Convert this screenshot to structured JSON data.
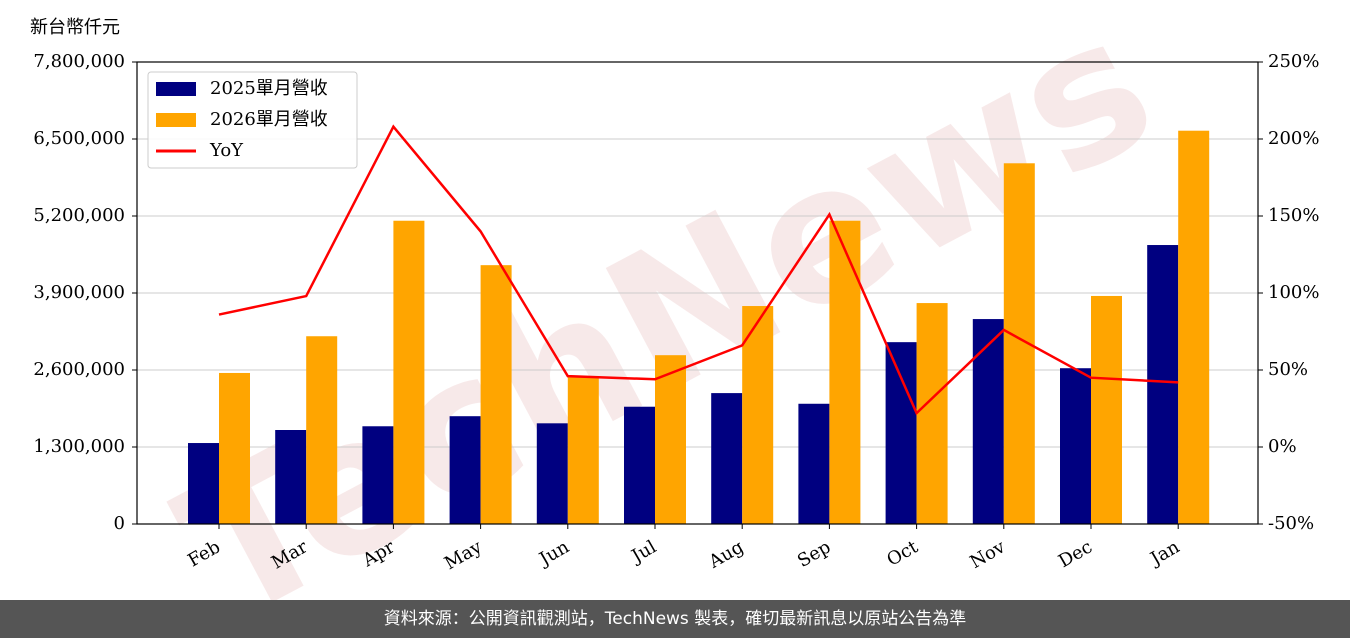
{
  "chart_data": {
    "type": "bar",
    "ylabel": "新台幣仟元",
    "watermark": "TechNews",
    "categories": [
      "Feb",
      "Mar",
      "Apr",
      "May",
      "Jun",
      "Jul",
      "Aug",
      "Sep",
      "Oct",
      "Nov",
      "Dec",
      "Jan"
    ],
    "series": [
      {
        "name": "2025單月營收",
        "color": "#000080",
        "values": [
          1367000,
          1587000,
          1650000,
          1820000,
          1700000,
          1980000,
          2210000,
          2030000,
          3070000,
          3460000,
          2630000,
          4710000
        ]
      },
      {
        "name": "2026單月營收",
        "color": "#ffa500",
        "values": [
          2550000,
          3170000,
          5120000,
          4370000,
          2480000,
          2850000,
          3680000,
          5120000,
          3730000,
          6090000,
          3850000,
          6640000
        ]
      },
      {
        "name": "YoY",
        "type": "line",
        "axis": "y2",
        "color": "#ff0000",
        "values": [
          86,
          98,
          208,
          140,
          46,
          44,
          66,
          151,
          22,
          76,
          45,
          42
        ]
      }
    ],
    "ylim": [
      0,
      7800000
    ],
    "yticks": [
      0,
      {
        "value": 1300000,
        "label": "1,300,000"
      },
      {
        "value": 2600000,
        "label": "2,600,000"
      },
      {
        "value": 3900000,
        "label": "3,900,000"
      },
      {
        "value": 5200000,
        "label": "5,200,000"
      },
      {
        "value": 6500000,
        "label": "6,500,000"
      },
      {
        "value": 7800000,
        "label": "7,800,000"
      }
    ],
    "y2lim": [
      -50,
      250
    ],
    "y2ticks": [
      {
        "value": -50,
        "label": "-50%"
      },
      {
        "value": 0,
        "label": "0%"
      },
      {
        "value": 50,
        "label": "50%"
      },
      {
        "value": 100,
        "label": "100%"
      },
      {
        "value": 150,
        "label": "150%"
      },
      {
        "value": 200,
        "label": "200%"
      },
      {
        "value": 250,
        "label": "250%"
      }
    ],
    "grid": true,
    "legend": "upper left",
    "footer": "資料來源：公開資訊觀測站，TechNews 製表，確切最新訊息以原站公告為準"
  }
}
